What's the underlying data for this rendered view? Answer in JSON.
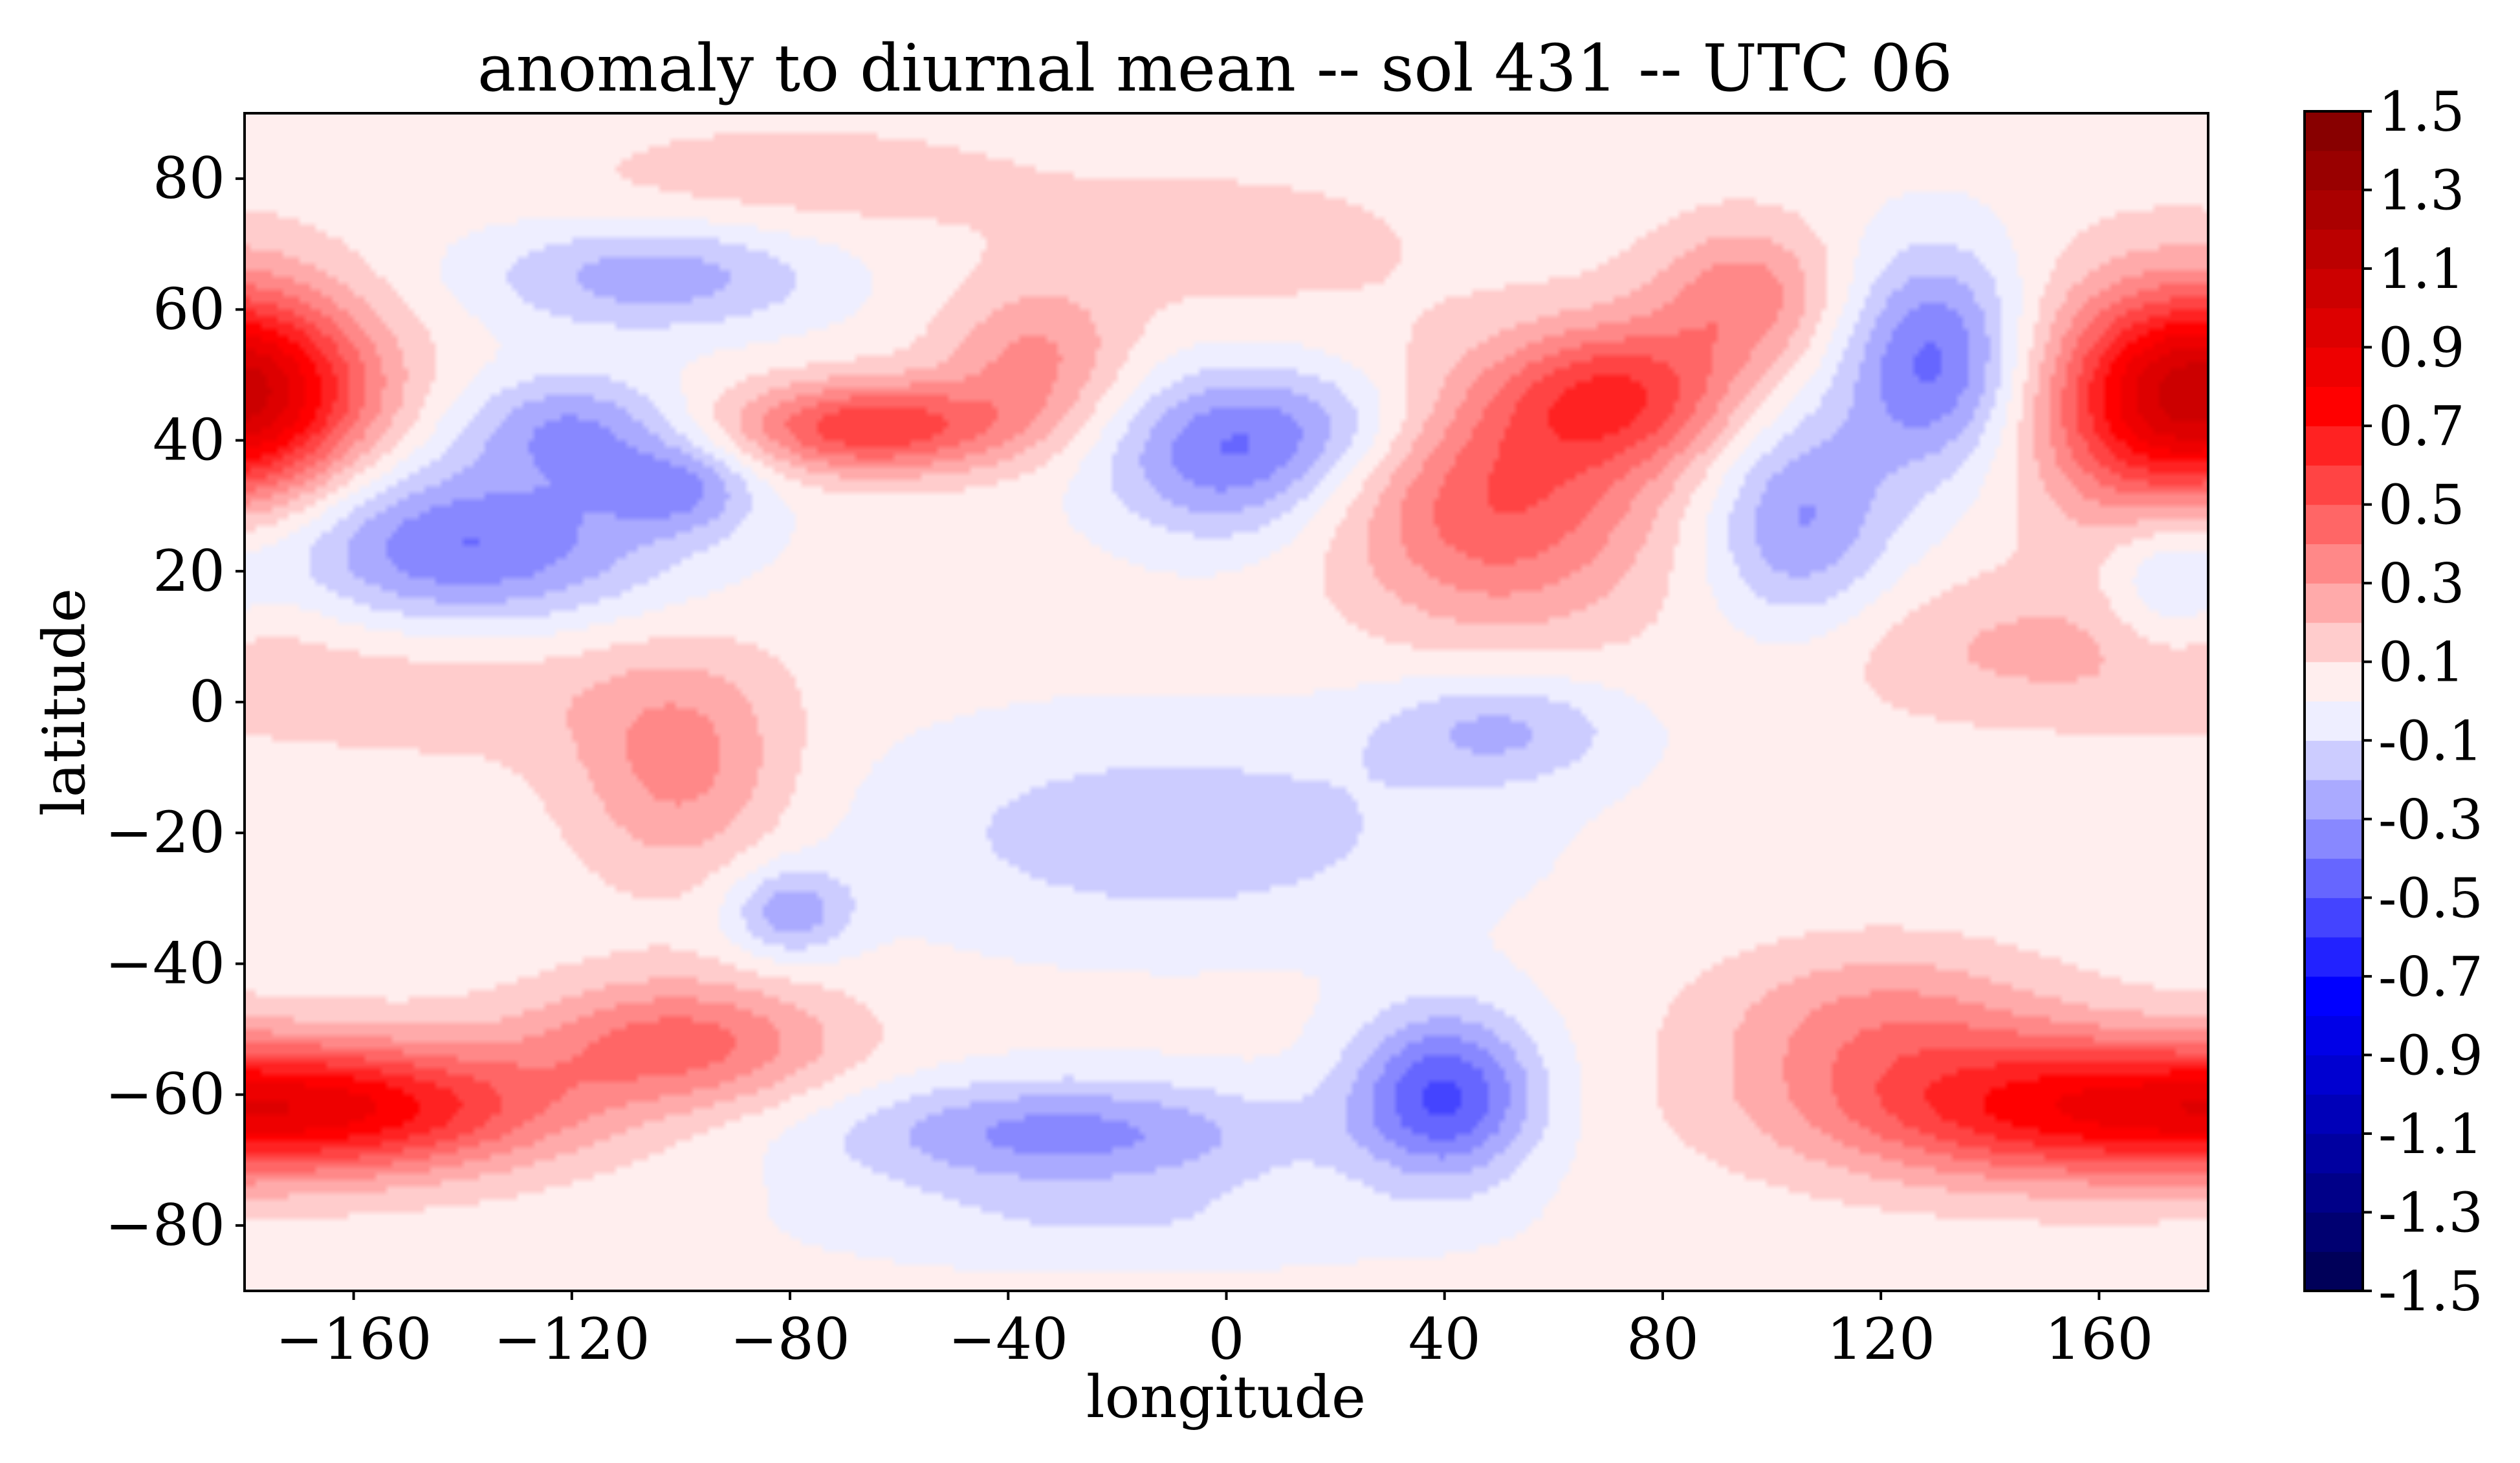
{
  "chart_data": {
    "type": "filled-contour",
    "title": "anomaly to diurnal mean -- sol 431 -- UTC 06",
    "xlabel": "longitude",
    "ylabel": "latitude",
    "xlim": [
      -180,
      180
    ],
    "ylim": [
      -90,
      90
    ],
    "x_ticks": [
      -160,
      -120,
      -80,
      -40,
      0,
      40,
      80,
      120,
      160
    ],
    "y_ticks": [
      80,
      60,
      40,
      20,
      0,
      -20,
      -40,
      -60,
      -80
    ],
    "x_tick_labels": [
      "−160",
      "−120",
      "−80",
      "−40",
      "0",
      "40",
      "80",
      "120",
      "160"
    ],
    "y_tick_labels": [
      "80",
      "60",
      "40",
      "20",
      "0",
      "−20",
      "−40",
      "−60",
      "−80"
    ],
    "colorbar": {
      "range": [
        -1.5,
        1.5
      ],
      "levels": 30,
      "cmap": "seismic",
      "tick_values": [
        1.5,
        1.3,
        1.1,
        0.9,
        0.7,
        0.5,
        0.3,
        0.1,
        -0.1,
        -0.3,
        -0.5,
        -0.7,
        -0.9,
        -1.1,
        -1.3,
        -1.5
      ],
      "tick_labels": [
        "1.5",
        "1.3",
        "1.1",
        "0.9",
        "0.7",
        "0.5",
        "0.3",
        "0.1",
        "-0.1",
        "-0.3",
        "-0.5",
        "-0.7",
        "-0.9",
        "-1.1",
        "-1.3",
        "-1.5"
      ]
    },
    "features": [
      {
        "lon": -178,
        "lat": 48,
        "value": 0.55,
        "sx": 16,
        "sy": 10
      },
      {
        "lon": -140,
        "lat": 24,
        "value": -0.45,
        "sx": 26,
        "sy": 9
      },
      {
        "lon": -120,
        "lat": 42,
        "value": -0.32,
        "sx": 14,
        "sy": 6
      },
      {
        "lon": -100,
        "lat": 33,
        "value": -0.3,
        "sx": 10,
        "sy": 5
      },
      {
        "lon": -105,
        "lat": 65,
        "value": -0.3,
        "sx": 22,
        "sy": 6
      },
      {
        "lon": -80,
        "lat": 80,
        "value": 0.12,
        "sx": 30,
        "sy": 6
      },
      {
        "lon": -65,
        "lat": 42,
        "value": 0.55,
        "sx": 18,
        "sy": 5
      },
      {
        "lon": -35,
        "lat": 52,
        "value": 0.28,
        "sx": 12,
        "sy": 8
      },
      {
        "lon": 0,
        "lat": 38,
        "value": -0.42,
        "sx": 16,
        "sy": 9
      },
      {
        "lon": 20,
        "lat": 43,
        "value": -0.15,
        "sx": 14,
        "sy": 6
      },
      {
        "lon": 50,
        "lat": 30,
        "value": 0.45,
        "sx": 20,
        "sy": 13
      },
      {
        "lon": 72,
        "lat": 47,
        "value": 0.5,
        "sx": 16,
        "sy": 8
      },
      {
        "lon": 95,
        "lat": 62,
        "value": 0.32,
        "sx": 12,
        "sy": 8
      },
      {
        "lon": 0,
        "lat": 70,
        "value": 0.1,
        "sx": 30,
        "sy": 9
      },
      {
        "lon": 105,
        "lat": 28,
        "value": -0.35,
        "sx": 12,
        "sy": 12
      },
      {
        "lon": 130,
        "lat": 52,
        "value": -0.48,
        "sx": 12,
        "sy": 12
      },
      {
        "lon": 172,
        "lat": 45,
        "value": 0.55,
        "sx": 18,
        "sy": 14
      },
      {
        "lon": 172,
        "lat": 18,
        "value": -0.2,
        "sx": 8,
        "sy": 8
      },
      {
        "lon": 150,
        "lat": 8,
        "value": 0.18,
        "sx": 30,
        "sy": 8
      },
      {
        "lon": 50,
        "lat": -4,
        "value": -0.25,
        "sx": 16,
        "sy": 6
      },
      {
        "lon": -100,
        "lat": -10,
        "value": 0.3,
        "sx": 14,
        "sy": 12
      },
      {
        "lon": -140,
        "lat": 2,
        "value": 0.12,
        "sx": 30,
        "sy": 8
      },
      {
        "lon": -80,
        "lat": -32,
        "value": -0.3,
        "sx": 8,
        "sy": 5
      },
      {
        "lon": -10,
        "lat": -20,
        "value": -0.2,
        "sx": 40,
        "sy": 12
      },
      {
        "lon": -160,
        "lat": -62,
        "value": 0.62,
        "sx": 28,
        "sy": 7
      },
      {
        "lon": -100,
        "lat": -52,
        "value": 0.4,
        "sx": 20,
        "sy": 7
      },
      {
        "lon": -30,
        "lat": -66,
        "value": -0.38,
        "sx": 30,
        "sy": 6
      },
      {
        "lon": 40,
        "lat": -60,
        "value": -0.55,
        "sx": 12,
        "sy": 9
      },
      {
        "lon": 150,
        "lat": -62,
        "value": 0.6,
        "sx": 32,
        "sy": 8
      },
      {
        "lon": 120,
        "lat": -48,
        "value": 0.25,
        "sx": 22,
        "sy": 8
      },
      {
        "lon": -20,
        "lat": -80,
        "value": -0.12,
        "sx": 40,
        "sy": 5
      }
    ]
  }
}
